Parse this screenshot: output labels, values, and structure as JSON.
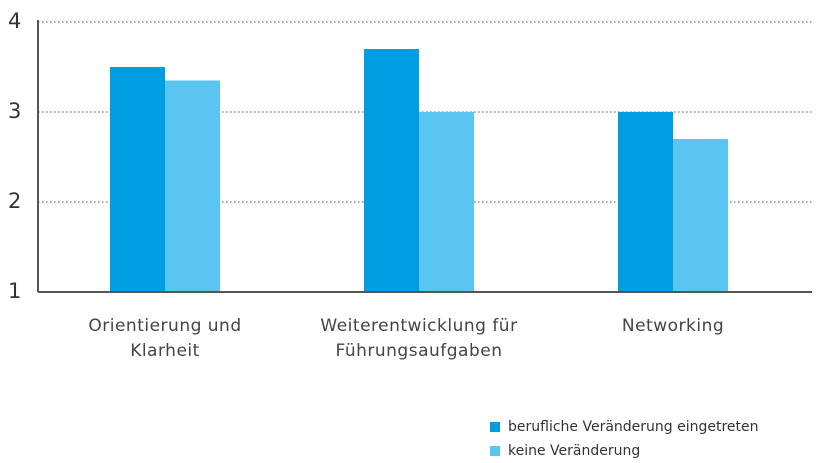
{
  "chart_data": {
    "type": "bar",
    "categories": [
      "Orientierung und Klarheit",
      "Weiterentwicklung für Führungsaufgaben",
      "Networking"
    ],
    "series": [
      {
        "name": "berufliche Veränderung eingetreten",
        "color": "#009ee0",
        "values": [
          3.5,
          3.7,
          3.0
        ]
      },
      {
        "name": "keine Veränderung",
        "color": "#5bc5f2",
        "values": [
          3.35,
          3.0,
          2.7
        ]
      }
    ],
    "ylim": [
      1,
      4
    ],
    "yticks": [
      1,
      2,
      3,
      4
    ],
    "grid": true,
    "legend": "bottom-right"
  }
}
